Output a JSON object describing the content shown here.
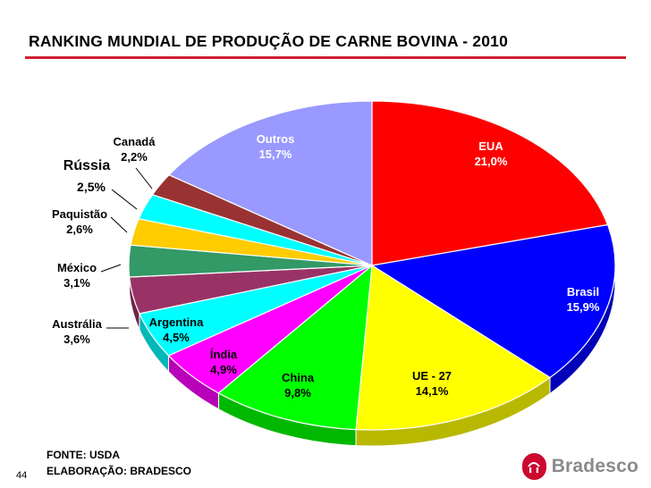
{
  "title": "RANKING MUNDIAL DE PRODUÇÃO DE CARNE BOVINA - 2010",
  "chart_data": {
    "type": "pie",
    "title": "RANKING MUNDIAL DE PRODUÇÃO DE CARNE BOVINA - 2010",
    "unit": "%",
    "slices": [
      {
        "label": "EUA",
        "value": 21.0,
        "value_text": "21,0%",
        "color": "#ff0000"
      },
      {
        "label": "Brasil",
        "value": 15.9,
        "value_text": "15,9%",
        "color": "#0000ff"
      },
      {
        "label": "UE - 27",
        "value": 14.1,
        "value_text": "14,1%",
        "color": "#ffff00"
      },
      {
        "label": "China",
        "value": 9.8,
        "value_text": "9,8%",
        "color": "#00ff00"
      },
      {
        "label": "Índia",
        "value": 4.9,
        "value_text": "4,9%",
        "color": "#ff00ff"
      },
      {
        "label": "Argentina",
        "value": 4.5,
        "value_text": "4,5%",
        "color": "#00ffff"
      },
      {
        "label": "Austrália",
        "value": 3.6,
        "value_text": "3,6%",
        "color": "#993366"
      },
      {
        "label": "México",
        "value": 3.1,
        "value_text": "3,1%",
        "color": "#339966"
      },
      {
        "label": "Paquistão",
        "value": 2.6,
        "value_text": "2,6%",
        "color": "#ffcc00"
      },
      {
        "label": "Rússia",
        "value": 2.5,
        "value_text": "2,5%",
        "color": "#00ffff"
      },
      {
        "label": "Canadá",
        "value": 2.2,
        "value_text": "2,2%",
        "color": "#993333"
      },
      {
        "label": "Outros",
        "value": 15.7,
        "value_text": "15,7%",
        "color": "#9999ff"
      }
    ]
  },
  "footer": {
    "source": "FONTE: USDA",
    "elaboration": "ELABORAÇÃO: BRADESCO",
    "page_number": "44",
    "brand": "Bradesco",
    "brand_color": "#cc092f"
  }
}
